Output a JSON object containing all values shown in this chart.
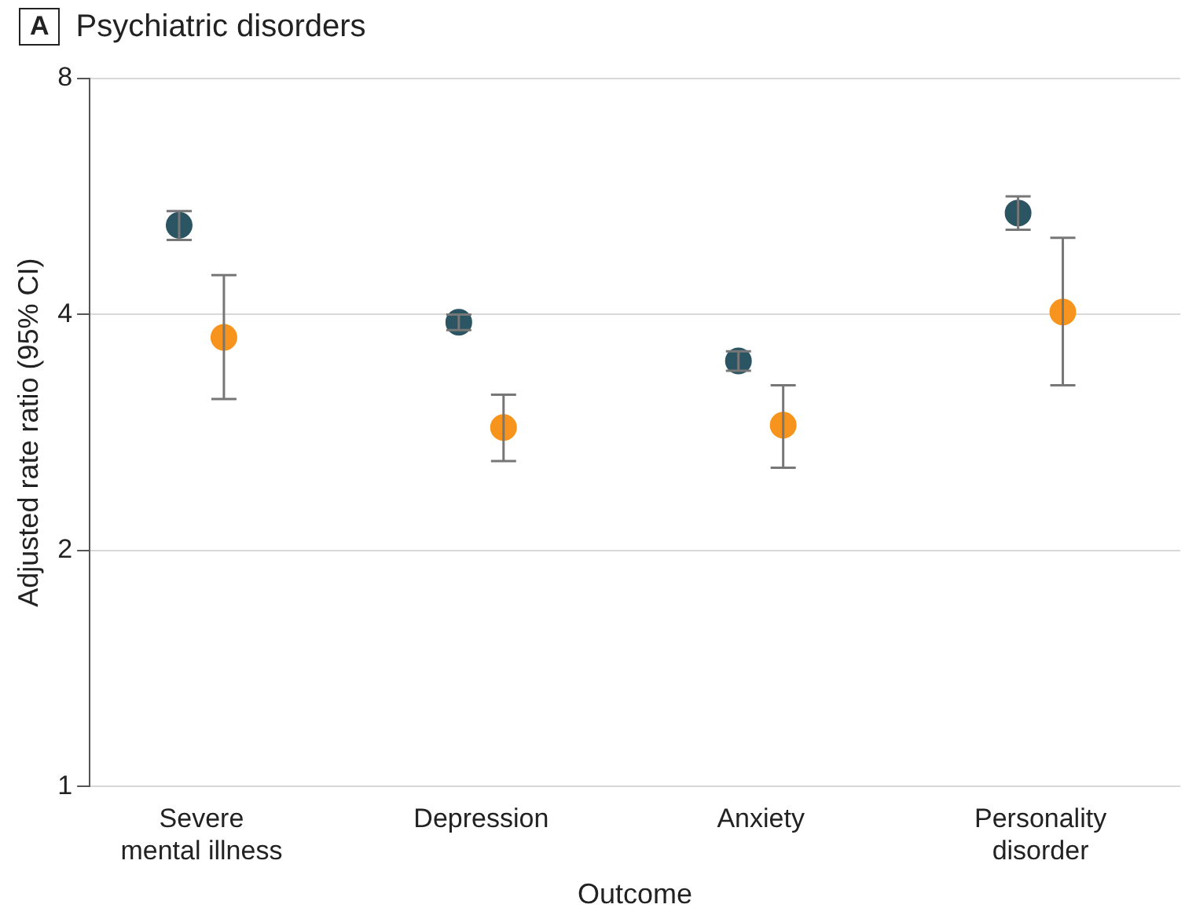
{
  "chart_data": {
    "type": "scatter",
    "title": "Psychiatric disorders",
    "annotations": [
      "A"
    ],
    "xlabel": "Outcome",
    "ylabel": "Adjusted rate ratio (95% CI)",
    "categories": [
      "Severe mental illness",
      "Depression",
      "Anxiety",
      "Personality disorder"
    ],
    "series": [
      {
        "color": "#2b5563",
        "values": [
          5.2,
          3.91,
          3.49,
          5.39
        ],
        "errors": [
          [
            4.98,
            5.42
          ],
          [
            3.82,
            4.0
          ],
          [
            3.39,
            3.59
          ],
          [
            5.13,
            5.66
          ]
        ]
      },
      {
        "color": "#f7941d",
        "values": [
          3.74,
          2.87,
          2.89,
          4.03
        ],
        "errors": [
          [
            3.12,
            4.49
          ],
          [
            2.6,
            3.16
          ],
          [
            2.55,
            3.25
          ],
          [
            3.25,
            5.01
          ]
        ]
      }
    ],
    "log": "y",
    "ylim": [
      1,
      8
    ],
    "yticks": [
      1,
      2,
      4,
      8
    ],
    "grid": "y",
    "marker": "circle",
    "legend": false
  }
}
